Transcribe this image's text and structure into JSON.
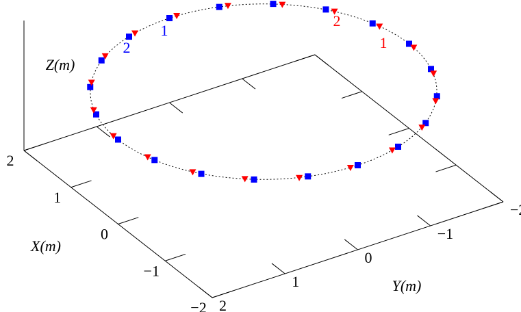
{
  "chart_data": {
    "type": "scatter3d",
    "xlabel": "X(m)",
    "ylabel": "Y(m)",
    "zlabel": "Z(m)",
    "xlim": [
      -2,
      2
    ],
    "ylim": [
      -2,
      2
    ],
    "zlim": [
      0,
      2
    ],
    "xticks": [
      {
        "value": -2,
        "label": "−2"
      },
      {
        "value": -1,
        "label": "−1"
      },
      0,
      1,
      2
    ],
    "yticks": [
      {
        "value": -2,
        "label": "−2"
      },
      {
        "value": -1,
        "label": "−1"
      },
      0,
      1,
      2
    ],
    "series": [
      {
        "color": "#0000ff",
        "marker": "square",
        "x": [
          2.0,
          1.9,
          1.62,
          1.18,
          0.62,
          0.0,
          -0.62,
          -1.18,
          -1.62,
          -1.9,
          -2.0,
          -1.9,
          -1.62,
          -1.18,
          -0.62,
          0.0,
          0.62,
          1.18,
          1.62,
          1.9
        ],
        "y": [
          0.0,
          0.62,
          1.18,
          1.62,
          1.9,
          2.0,
          1.9,
          1.62,
          1.18,
          0.62,
          0.0,
          -0.62,
          -1.18,
          -1.62,
          -1.9,
          -2.0,
          -1.9,
          -1.62,
          -1.18,
          -0.62
        ],
        "z": [
          1.3,
          1.3,
          1.3,
          1.3,
          1.3,
          1.3,
          1.3,
          1.3,
          1.3,
          1.3,
          1.3,
          1.3,
          1.3,
          1.3,
          1.3,
          1.3,
          1.3,
          1.3,
          1.3,
          1.3
        ]
      },
      {
        "color": "#ff0000",
        "marker": "triangle-down",
        "x": [
          2.0,
          1.93,
          1.68,
          1.26,
          0.72,
          0.1,
          -0.52,
          -1.09,
          -1.55,
          -1.87,
          -2.0,
          -1.93,
          -1.68,
          -1.26,
          -0.72,
          -0.1,
          0.52,
          1.09,
          1.55,
          1.87
        ],
        "y": [
          -0.1,
          0.52,
          1.09,
          1.55,
          1.87,
          2.0,
          1.93,
          1.68,
          1.26,
          0.72,
          0.1,
          -0.52,
          -1.09,
          -1.55,
          -1.87,
          -2.0,
          -1.93,
          -1.68,
          -1.26,
          -0.72
        ],
        "z": [
          1.3,
          1.3,
          1.3,
          1.3,
          1.3,
          1.3,
          1.3,
          1.3,
          1.3,
          1.3,
          1.3,
          1.3,
          1.3,
          1.3,
          1.3,
          1.3,
          1.3,
          1.3,
          1.3,
          1.3
        ]
      }
    ],
    "annotations": [
      {
        "text": "1",
        "color": "#0000ff"
      },
      {
        "text": "2",
        "color": "#0000ff"
      },
      {
        "text": "2",
        "color": "#ff0000"
      },
      {
        "text": "1",
        "color": "#ff0000"
      }
    ]
  }
}
